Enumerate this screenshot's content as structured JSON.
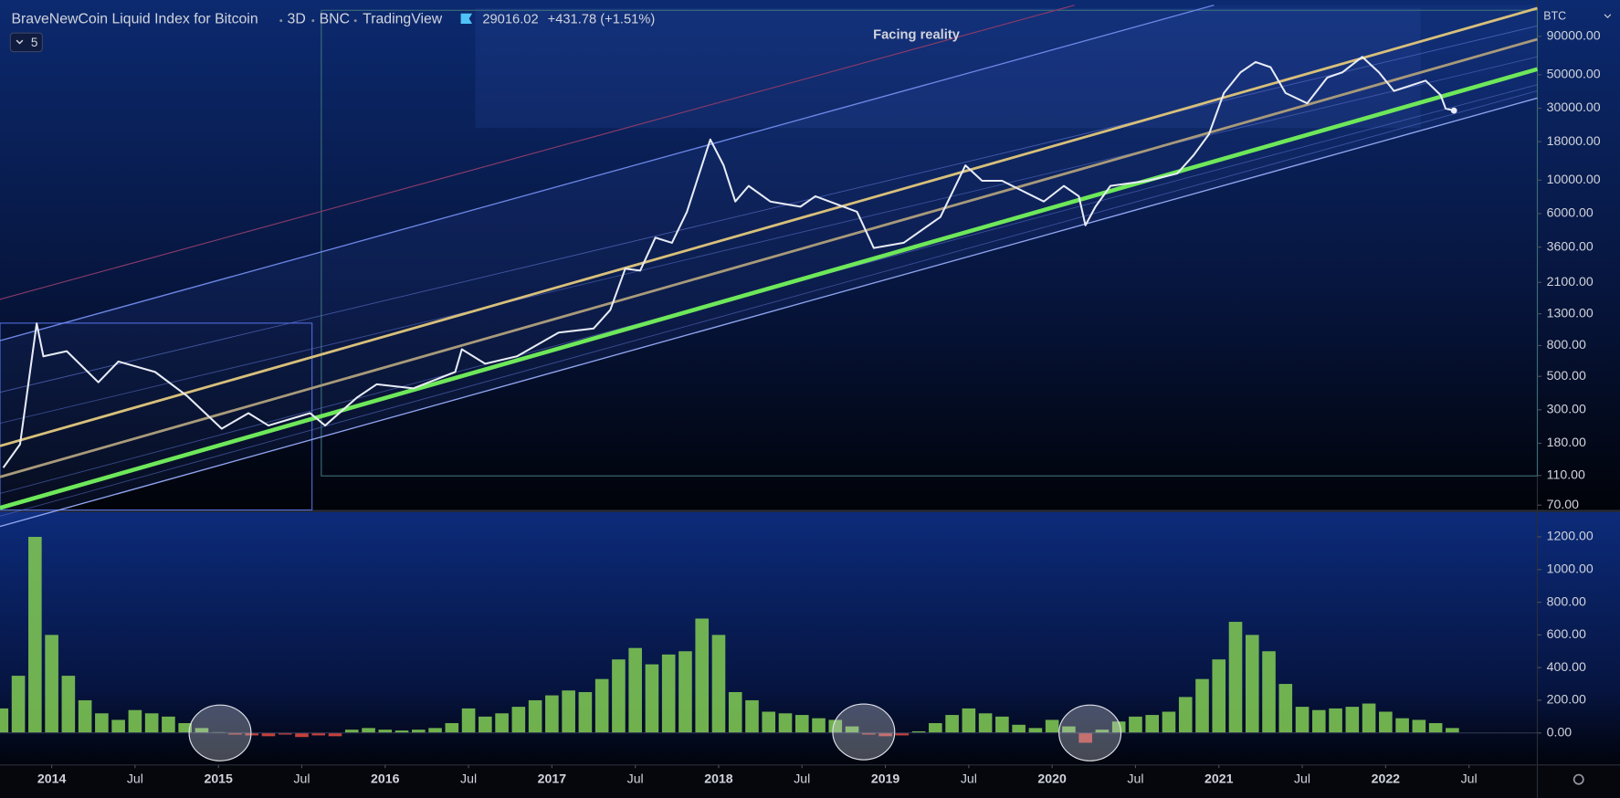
{
  "header": {
    "symbol": "BraveNewCoin Liquid Index for Bitcoin",
    "interval": "3D",
    "exchange": "BNC",
    "source": "TradingView",
    "last_price": "29016.02",
    "change": "+431.78 (+1.51%)",
    "indicator_count": "5"
  },
  "chart_data": [
    {
      "type": "line",
      "annotation": "Facing reality",
      "y_axis_label": "BTC",
      "log_scale": true,
      "color": "#e8ecf7",
      "xlim": [
        2013.69,
        2022.91
      ],
      "xticks": [
        2014,
        {
          "value": 2014.5,
          "label": "Jul"
        },
        2015,
        {
          "value": 2015.5,
          "label": "Jul"
        },
        2016,
        {
          "value": 2016.5,
          "label": "Jul"
        },
        2017,
        {
          "value": 2017.5,
          "label": "Jul"
        },
        2018,
        {
          "value": 2018.5,
          "label": "Jul"
        },
        2019,
        {
          "value": 2019.5,
          "label": "Jul"
        },
        2020,
        {
          "value": 2020.5,
          "label": "Jul"
        },
        2021,
        {
          "value": 2021.5,
          "label": "Jul"
        },
        2022,
        {
          "value": 2022.5,
          "label": "Jul"
        }
      ],
      "ylim": [
        65,
        138000
      ],
      "yticks": [
        {
          "value": 70,
          "label": "70.00"
        },
        {
          "value": 110,
          "label": "110.00"
        },
        {
          "value": 180,
          "label": "180.00"
        },
        {
          "value": 300,
          "label": "300.00"
        },
        {
          "value": 500,
          "label": "500.00"
        },
        {
          "value": 800,
          "label": "800.00"
        },
        {
          "value": 1300,
          "label": "1300.00"
        },
        {
          "value": 2100,
          "label": "2100.00"
        },
        {
          "value": 3600,
          "label": "3600.00"
        },
        {
          "value": 6000,
          "label": "6000.00"
        },
        {
          "value": 10000,
          "label": "10000.00"
        },
        {
          "value": 18000,
          "label": "18000.00"
        },
        {
          "value": 30000,
          "label": "30000.00"
        },
        {
          "value": 50000,
          "label": "50000.00"
        },
        {
          "value": 90000,
          "label": "90000.00"
        }
      ],
      "x": [
        2013.71,
        2013.81,
        2013.91,
        2013.95,
        2014.09,
        2014.28,
        2014.4,
        2014.62,
        2014.81,
        2015.02,
        2015.18,
        2015.3,
        2015.55,
        2015.64,
        2015.83,
        2015.95,
        2016.17,
        2016.42,
        2016.46,
        2016.6,
        2016.79,
        2017.04,
        2017.25,
        2017.35,
        2017.44,
        2017.53,
        2017.62,
        2017.72,
        2017.81,
        2017.95,
        2018.03,
        2018.1,
        2018.18,
        2018.31,
        2018.49,
        2018.58,
        2018.83,
        2018.93,
        2019.11,
        2019.33,
        2019.48,
        2019.58,
        2019.7,
        2019.95,
        2020.07,
        2020.16,
        2020.2,
        2020.26,
        2020.35,
        2020.57,
        2020.75,
        2020.85,
        2020.94,
        2021.03,
        2021.13,
        2021.22,
        2021.31,
        2021.4,
        2021.53,
        2021.65,
        2021.74,
        2021.86,
        2021.96,
        2022.05,
        2022.24,
        2022.33,
        2022.36,
        2022.41
      ],
      "values": [
        124,
        177,
        1122,
        678,
        734,
        457,
        627,
        535,
        372,
        225,
        285,
        236,
        285,
        236,
        361,
        443,
        416,
        535,
        757,
        607,
        678,
        975,
        1038,
        1380,
        2590,
        2513,
        4158,
        3843,
        6170,
        18620,
        12530,
        7220,
        9150,
        7220,
        6670,
        7820,
        6170,
        3550,
        3843,
        5700,
        12530,
        9910,
        9910,
        7220,
        9150,
        7820,
        5026,
        6670,
        9150,
        9910,
        11060,
        14700,
        20140,
        37860,
        51870,
        60690,
        56100,
        37860,
        32300,
        47950,
        51870,
        65700,
        51870,
        39050,
        45700,
        36680,
        29860,
        28930
      ]
    },
    {
      "type": "bar",
      "color": "#7cc353",
      "negative_color": "#d9473f",
      "xlim": [
        2013.69,
        2022.91
      ],
      "ylim": [
        -196,
        1352
      ],
      "yticks": [
        {
          "value": 0,
          "label": "0.00"
        },
        {
          "value": 200,
          "label": "200.00"
        },
        {
          "value": 400,
          "label": "400.00"
        },
        {
          "value": 600,
          "label": "600.00"
        },
        {
          "value": 800,
          "label": "800.00"
        },
        {
          "value": 1000,
          "label": "1000.00"
        },
        {
          "value": 1200,
          "label": "1200.00"
        }
      ],
      "x": [
        2013.7,
        2013.8,
        2013.9,
        2014.0,
        2014.1,
        2014.2,
        2014.3,
        2014.4,
        2014.5,
        2014.6,
        2014.7,
        2014.8,
        2014.9,
        2015.0,
        2015.1,
        2015.2,
        2015.3,
        2015.4,
        2015.5,
        2015.6,
        2015.7,
        2015.8,
        2015.9,
        2016.0,
        2016.1,
        2016.2,
        2016.3,
        2016.4,
        2016.5,
        2016.6,
        2016.7,
        2016.8,
        2016.9,
        2017.0,
        2017.1,
        2017.2,
        2017.3,
        2017.4,
        2017.5,
        2017.6,
        2017.7,
        2017.8,
        2017.9,
        2018.0,
        2018.1,
        2018.2,
        2018.3,
        2018.4,
        2018.5,
        2018.6,
        2018.7,
        2018.8,
        2018.9,
        2019.0,
        2019.1,
        2019.2,
        2019.3,
        2019.4,
        2019.5,
        2019.6,
        2019.7,
        2019.8,
        2019.9,
        2020.0,
        2020.1,
        2020.2,
        2020.3,
        2020.4,
        2020.5,
        2020.6,
        2020.7,
        2020.8,
        2020.9,
        2021.0,
        2021.1,
        2021.2,
        2021.3,
        2021.4,
        2021.5,
        2021.6,
        2021.7,
        2021.8,
        2021.9,
        2022.0,
        2022.1,
        2022.2,
        2022.3,
        2022.4
      ],
      "values": [
        150,
        350,
        1200,
        600,
        350,
        200,
        120,
        80,
        140,
        120,
        100,
        60,
        30,
        5,
        -10,
        -15,
        -20,
        -10,
        -25,
        -15,
        -20,
        20,
        30,
        20,
        15,
        20,
        30,
        60,
        150,
        100,
        120,
        160,
        200,
        230,
        260,
        250,
        330,
        450,
        520,
        420,
        480,
        500,
        700,
        600,
        250,
        200,
        130,
        120,
        110,
        90,
        80,
        40,
        -10,
        -20,
        -15,
        10,
        60,
        110,
        150,
        120,
        100,
        50,
        30,
        80,
        40,
        -60,
        20,
        70,
        100,
        110,
        130,
        220,
        330,
        450,
        680,
        600,
        500,
        300,
        160,
        140,
        150,
        160,
        180,
        130,
        90,
        80,
        60,
        30
      ]
    }
  ]
}
